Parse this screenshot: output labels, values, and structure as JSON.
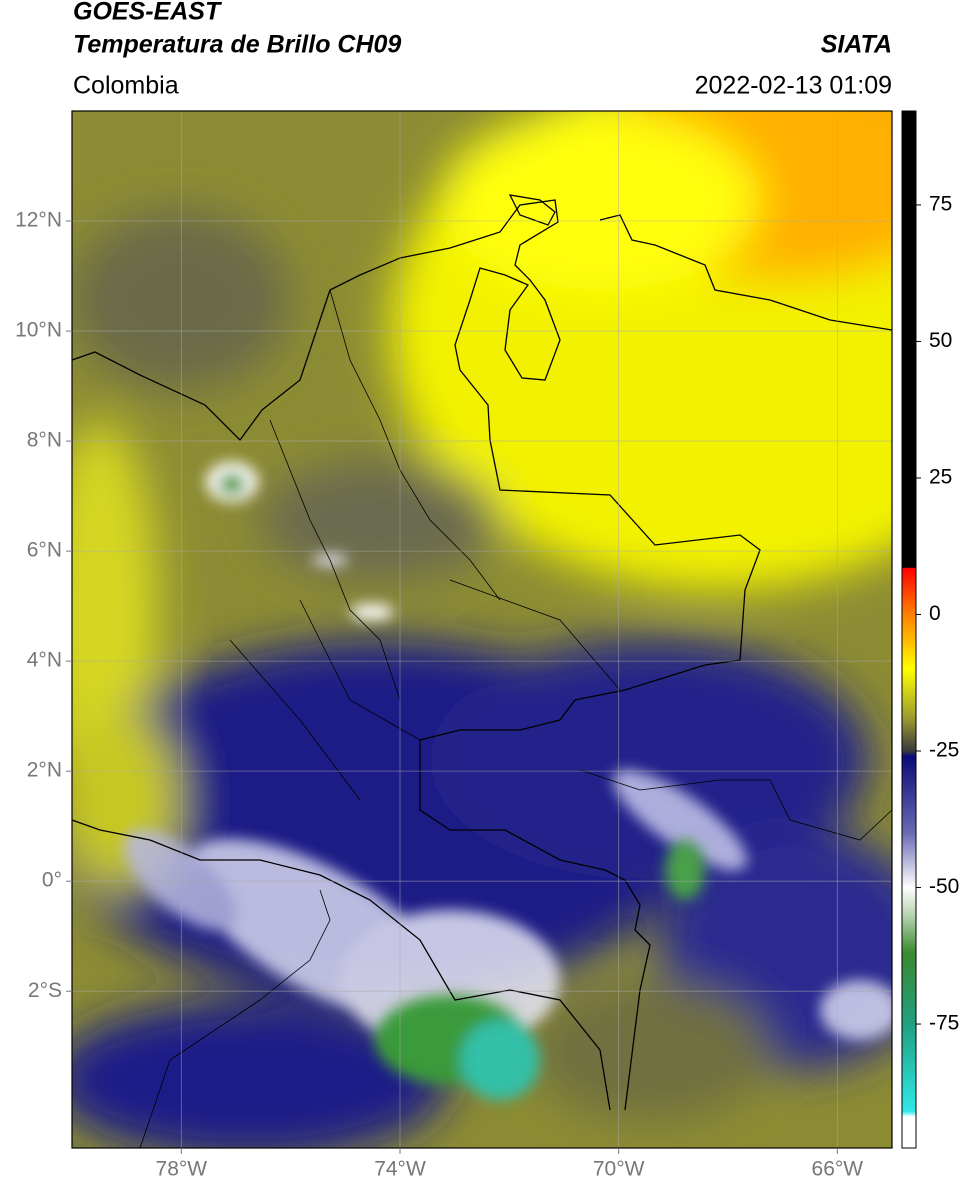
{
  "header": {
    "title": "GOES-EAST",
    "subtitle": "Temperatura de Brillo CH09",
    "source": "SIATA",
    "region": "Colombia",
    "datetime": "2022-02-13 01:09"
  },
  "map": {
    "xlim": [
      -80,
      -65
    ],
    "ylim": [
      -4.85,
      14
    ],
    "grid": true,
    "xticks": [
      {
        "value": -78,
        "label": "78°W"
      },
      {
        "value": -74,
        "label": "74°W"
      },
      {
        "value": -70,
        "label": "70°W"
      },
      {
        "value": -66,
        "label": "66°W"
      }
    ],
    "yticks": [
      {
        "value": 12,
        "label": "12°N"
      },
      {
        "value": 10,
        "label": "10°N"
      },
      {
        "value": 8,
        "label": "8°N"
      },
      {
        "value": 6,
        "label": "6°N"
      },
      {
        "value": 4,
        "label": "4°N"
      },
      {
        "value": 2,
        "label": "2°N"
      },
      {
        "value": 0,
        "label": "0°"
      },
      {
        "value": -2,
        "label": "2°S"
      }
    ]
  },
  "colorbar": {
    "clim": [
      -97.7,
      92.2
    ],
    "ticks": [
      75,
      50,
      25,
      0,
      -25,
      -50,
      -75
    ],
    "colormap": [
      {
        "value": 92.2,
        "color": "#000000"
      },
      {
        "value": 8.6,
        "color": "#000000"
      },
      {
        "value": 8.5,
        "color": "#ff0000"
      },
      {
        "value": 0,
        "color": "#ff8000"
      },
      {
        "value": -10,
        "color": "#ffff00"
      },
      {
        "value": -19,
        "color": "#9a9a30"
      },
      {
        "value": -25,
        "color": "#3a3a3a"
      },
      {
        "value": -26,
        "color": "#0a0a78"
      },
      {
        "value": -40,
        "color": "#6a6ab4"
      },
      {
        "value": -50,
        "color": "#ffffff"
      },
      {
        "value": -55,
        "color": "#b8d4b0"
      },
      {
        "value": -62,
        "color": "#3a8a30"
      },
      {
        "value": -75,
        "color": "#20a080"
      },
      {
        "value": -91,
        "color": "#30e8e8"
      },
      {
        "value": -92,
        "color": "#ffffff"
      },
      {
        "value": -97.7,
        "color": "#ffffff"
      }
    ]
  }
}
